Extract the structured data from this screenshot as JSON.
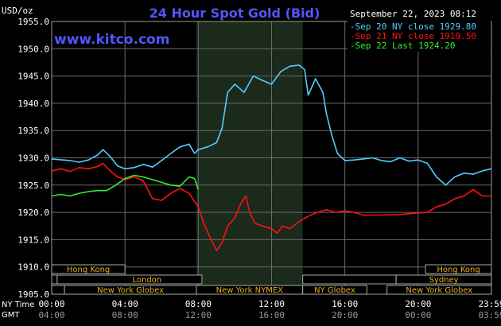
{
  "chart_data": {
    "type": "line",
    "title": "24 Hour Spot Gold (Bid)",
    "watermark": "www.kitco.com",
    "ylabel": "USD/oz",
    "date_label": "September 22, 2023 08:12",
    "ylim": [
      1905.0,
      1955.0
    ],
    "yticks": [
      "1955.0",
      "1950.0",
      "1945.0",
      "1940.0",
      "1935.0",
      "1930.0",
      "1925.0",
      "1920.0",
      "1915.0",
      "1910.0",
      "1905.0"
    ],
    "grid": true,
    "legend_position": "top-right",
    "x_axes": {
      "ny_label": "NY Time",
      "gmt_label": "GMT",
      "ny_ticks": [
        "00:00",
        "04:00",
        "08:00",
        "12:00",
        "16:00",
        "20:00",
        "23:59"
      ],
      "gmt_ticks": [
        "04:00",
        "08:00",
        "12:00",
        "16:00",
        "20:00",
        "00:00",
        "03:59"
      ]
    },
    "sessions": [
      "Hong Kong",
      "London",
      "New York Globex",
      "New York NYMEX",
      "NY Globex",
      "Hong Kong",
      "Sydney",
      "New York Globex"
    ],
    "series": [
      {
        "name": "Sep 20 NY close 1929.80",
        "color": "#55ccff",
        "x": [
          0,
          1,
          1.5,
          2,
          2.5,
          2.8,
          3.2,
          3.6,
          4,
          4.5,
          5,
          5.5,
          6,
          6.5,
          7,
          7.5,
          7.8,
          8,
          8.5,
          9,
          9.3,
          9.6,
          10,
          10.5,
          11,
          11.5,
          12,
          12.5,
          13,
          13.5,
          13.8,
          14,
          14.4,
          14.8,
          15,
          15.3,
          15.6,
          16,
          16.5,
          17,
          17.5,
          18,
          18.5,
          19,
          19.5,
          20,
          20.5,
          21,
          21.5,
          22,
          22.5,
          23,
          23.5,
          24
        ],
        "values": [
          1929.8,
          1929.5,
          1929.2,
          1929.6,
          1930.5,
          1931.5,
          1930.2,
          1928.5,
          1928.0,
          1928.2,
          1928.8,
          1928.3,
          1929.5,
          1930.8,
          1932.0,
          1932.5,
          1930.8,
          1931.5,
          1932.0,
          1932.8,
          1935.5,
          1942.0,
          1943.5,
          1942.0,
          1945.0,
          1944.2,
          1943.5,
          1945.8,
          1946.8,
          1947.0,
          1946.2,
          1941.5,
          1944.5,
          1942.0,
          1938.0,
          1934.0,
          1930.8,
          1929.5,
          1929.6,
          1929.8,
          1930.0,
          1929.5,
          1929.3,
          1930.0,
          1929.4,
          1929.6,
          1929.0,
          1926.5,
          1925.0,
          1926.5,
          1927.2,
          1927.0,
          1927.6,
          1928.0
        ]
      },
      {
        "name": "Sep 21 NY close 1919.50",
        "color": "#ff1111",
        "x": [
          0,
          0.5,
          1,
          1.5,
          2,
          2.5,
          2.8,
          3.2,
          3.6,
          4,
          4.5,
          5,
          5.5,
          6,
          6.5,
          7,
          7.5,
          8,
          8.3,
          8.7,
          9,
          9.3,
          9.6,
          10,
          10.3,
          10.6,
          10.8,
          11.1,
          11.5,
          12,
          12.3,
          12.6,
          13,
          13.5,
          14,
          14.5,
          15,
          15.5,
          16,
          16.5,
          17,
          18,
          19,
          20,
          20.5,
          21,
          21.5,
          22,
          22.5,
          23,
          23.5,
          23.99
        ],
        "values": [
          1927.6,
          1928.0,
          1927.5,
          1928.2,
          1928.0,
          1928.4,
          1929.0,
          1927.6,
          1926.5,
          1926.0,
          1926.5,
          1925.8,
          1922.5,
          1922.2,
          1923.5,
          1924.4,
          1923.5,
          1921.0,
          1918.0,
          1915.0,
          1913.0,
          1914.5,
          1917.5,
          1919.0,
          1921.5,
          1923.0,
          1920.0,
          1918.0,
          1917.5,
          1917.0,
          1916.2,
          1917.5,
          1917.0,
          1918.3,
          1919.3,
          1920.0,
          1920.5,
          1920.0,
          1920.3,
          1920.0,
          1919.5,
          1919.5,
          1919.6,
          1919.9,
          1920.0,
          1921.0,
          1921.5,
          1922.5,
          1923.0,
          1924.2,
          1923.0,
          1923.0
        ]
      },
      {
        "name": "Sep 22 Last 1924.20",
        "color": "#33ee33",
        "x": [
          0,
          0.5,
          1,
          1.5,
          2,
          2.5,
          3,
          3.5,
          4,
          4.5,
          5,
          5.5,
          6,
          6.5,
          7,
          7.5,
          7.8,
          8
        ],
        "values": [
          1923.0,
          1923.3,
          1923.0,
          1923.5,
          1923.8,
          1924.0,
          1924.0,
          1925.0,
          1926.2,
          1926.8,
          1926.5,
          1926.0,
          1925.5,
          1925.0,
          1924.8,
          1926.5,
          1926.2,
          1924.2
        ]
      }
    ]
  }
}
